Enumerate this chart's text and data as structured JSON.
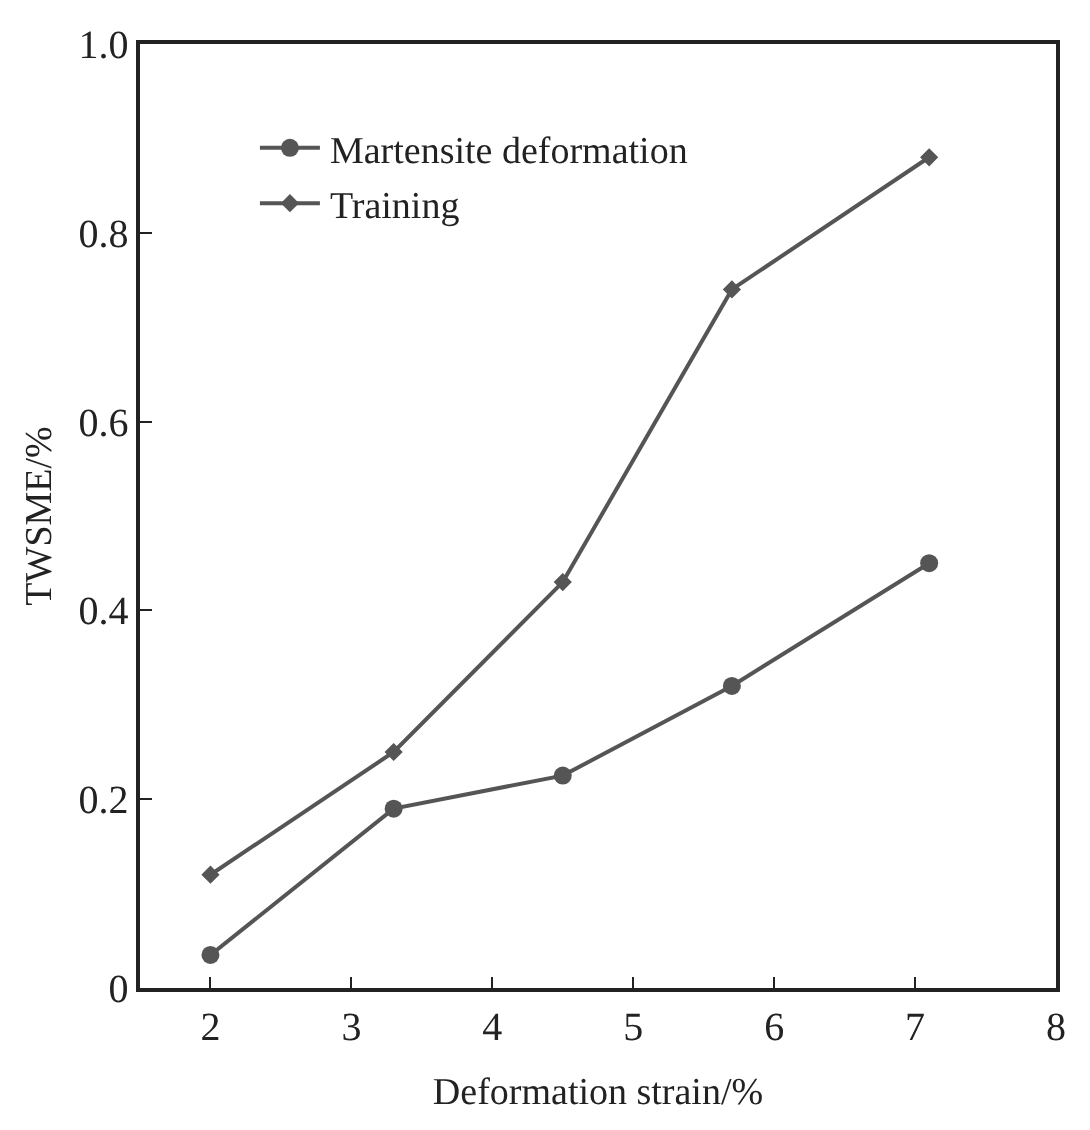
{
  "chart_data": {
    "type": "line",
    "xlabel": "Deformation strain/%",
    "ylabel": "TWSME/%",
    "xlim": [
      1.5,
      8
    ],
    "xticks": [
      2,
      3,
      4,
      5,
      6,
      7,
      8
    ],
    "ylim": [
      0,
      1.0
    ],
    "yticks": [
      {
        "value": 0,
        "label": "0"
      },
      0.2,
      0.4,
      0.6,
      0.8,
      {
        "value": 1.0,
        "label": "1.0"
      }
    ],
    "legend": "top left",
    "line_style": "solid",
    "series": [
      {
        "name": "Martensite deformation",
        "color": "#555555",
        "marker": "circle",
        "x": [
          2,
          3.3,
          4.5,
          5.7,
          7.1
        ],
        "values": [
          0.035,
          0.19,
          0.225,
          0.32,
          0.45
        ]
      },
      {
        "name": "Training",
        "color": "#555555",
        "marker": "diamond",
        "x": [
          2,
          3.3,
          4.5,
          5.7,
          7.1
        ],
        "values": [
          0.12,
          0.25,
          0.43,
          0.74,
          0.88
        ]
      }
    ]
  }
}
